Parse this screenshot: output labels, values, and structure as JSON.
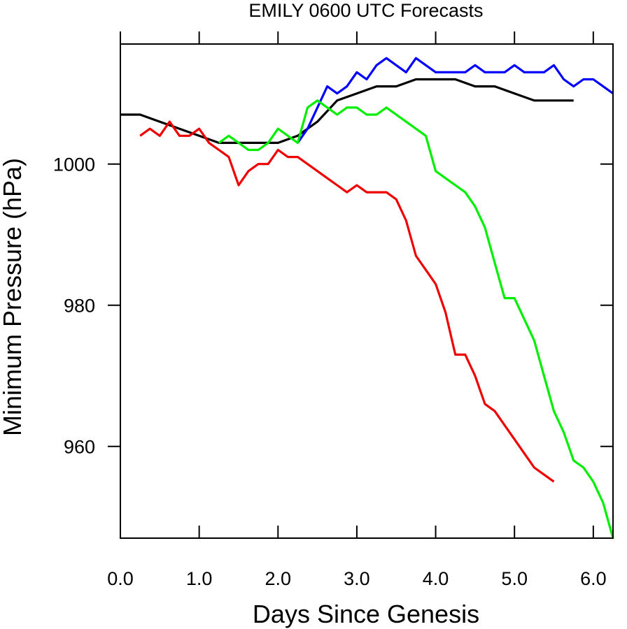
{
  "chart_data": {
    "type": "line",
    "title": "EMILY 0600 UTC Forecasts",
    "xlabel": "Days Since Genesis",
    "ylabel": "Minimum Pressure (hPa)",
    "xlim": [
      0,
      6.25
    ],
    "ylim": [
      947,
      1017
    ],
    "grid": false,
    "xticks": [
      {
        "value": 0,
        "label": "0.0"
      },
      {
        "value": 1,
        "label": "1.0"
      },
      {
        "value": 2,
        "label": "2.0"
      },
      {
        "value": 3,
        "label": "3.0"
      },
      {
        "value": 4,
        "label": "4.0"
      },
      {
        "value": 5,
        "label": "5.0"
      },
      {
        "value": 6,
        "label": "6.0"
      }
    ],
    "yticks": [
      {
        "value": 960,
        "label": "960"
      },
      {
        "value": 980,
        "label": "980"
      },
      {
        "value": 1000,
        "label": "1000"
      }
    ],
    "series": [
      {
        "color": "#000000",
        "x": [
          0,
          0.25,
          0.5,
          0.75,
          1.0,
          1.25,
          1.5,
          1.75,
          2.0,
          2.25,
          2.5,
          2.75,
          3.0,
          3.25,
          3.5,
          3.75,
          4.0,
          4.25,
          4.5,
          4.75,
          5.0,
          5.25,
          5.5,
          5.75
        ],
        "y": [
          1007,
          1007,
          1006,
          1005,
          1004,
          1003,
          1003,
          1003,
          1003,
          1004,
          1006,
          1009,
          1010,
          1011,
          1011,
          1012,
          1012,
          1012,
          1011,
          1011,
          1010,
          1009,
          1009,
          1009
        ]
      },
      {
        "color": "#0000ff",
        "x": [
          2.25,
          2.375,
          2.5,
          2.625,
          2.75,
          2.875,
          3.0,
          3.125,
          3.25,
          3.375,
          3.5,
          3.625,
          3.75,
          3.875,
          4.0,
          4.125,
          4.25,
          4.375,
          4.5,
          4.625,
          4.75,
          4.875,
          5.0,
          5.125,
          5.25,
          5.375,
          5.5,
          5.625,
          5.75,
          5.875,
          6.0,
          6.125,
          6.25
        ],
        "y": [
          1003,
          1005,
          1008,
          1011,
          1010,
          1011,
          1013,
          1012,
          1014,
          1015,
          1014,
          1013,
          1015,
          1014,
          1013,
          1013,
          1013,
          1013,
          1014,
          1013,
          1013,
          1013,
          1014,
          1013,
          1013,
          1013,
          1014,
          1012,
          1011,
          1012,
          1012,
          1011,
          1010
        ]
      },
      {
        "color": "#00ee00",
        "x": [
          1.25,
          1.375,
          1.5,
          1.625,
          1.75,
          1.875,
          2.0,
          2.125,
          2.25,
          2.375,
          2.5,
          2.625,
          2.75,
          2.875,
          3.0,
          3.125,
          3.25,
          3.375,
          3.5,
          3.625,
          3.75,
          3.875,
          4.0,
          4.125,
          4.25,
          4.375,
          4.5,
          4.625,
          4.75,
          4.875,
          5.0,
          5.125,
          5.25,
          5.375,
          5.5,
          5.625,
          5.75,
          5.875,
          6.0,
          6.125,
          6.25
        ],
        "y": [
          1003,
          1004,
          1003,
          1002,
          1002,
          1003,
          1005,
          1004,
          1003,
          1008,
          1009,
          1008,
          1007,
          1008,
          1008,
          1007,
          1007,
          1008,
          1007,
          1006,
          1005,
          1004,
          999,
          998,
          997,
          996,
          994,
          991,
          986,
          981,
          981,
          978,
          975,
          970,
          965,
          962,
          958,
          957,
          955,
          952,
          947
        ]
      },
      {
        "color": "#ee0000",
        "x": [
          0.25,
          0.375,
          0.5,
          0.625,
          0.75,
          0.875,
          1.0,
          1.125,
          1.25,
          1.375,
          1.5,
          1.625,
          1.75,
          1.875,
          2.0,
          2.125,
          2.25,
          2.375,
          2.5,
          2.625,
          2.75,
          2.875,
          3.0,
          3.125,
          3.25,
          3.375,
          3.5,
          3.625,
          3.75,
          3.875,
          4.0,
          4.125,
          4.25,
          4.375,
          4.5,
          4.625,
          4.75,
          4.875,
          5.0,
          5.125,
          5.25,
          5.375,
          5.5
        ],
        "y": [
          1004,
          1005,
          1004,
          1006,
          1004,
          1004,
          1005,
          1003,
          1002,
          1001,
          997,
          999,
          1000,
          1000,
          1002,
          1001,
          1001,
          1000,
          999,
          998,
          997,
          996,
          997,
          996,
          996,
          996,
          995,
          992,
          987,
          985,
          983,
          979,
          973,
          973,
          970,
          966,
          965,
          963,
          961,
          959,
          957,
          956,
          955
        ]
      }
    ]
  }
}
